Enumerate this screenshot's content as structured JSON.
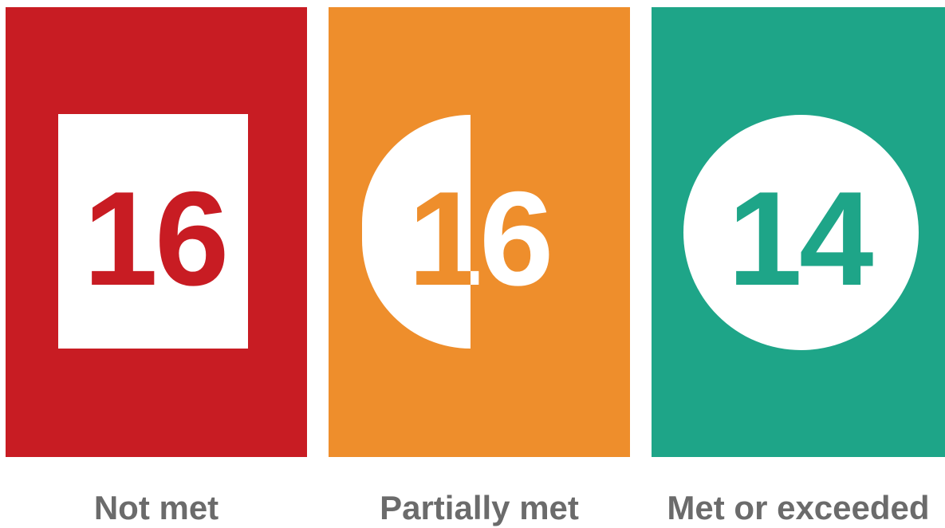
{
  "panels": [
    {
      "key": "not_met",
      "count": "16",
      "label": "Not met",
      "shape": "square",
      "color": "#c81c23"
    },
    {
      "key": "partially_met",
      "count": "16",
      "label": "Partially met",
      "shape": "half-circle",
      "color": "#ee8e2c"
    },
    {
      "key": "met_or_exceeded",
      "count": "14",
      "label": "Met or exceeded",
      "shape": "circle",
      "color": "#1ea588"
    }
  ],
  "caption_color": "#6b6b6b"
}
